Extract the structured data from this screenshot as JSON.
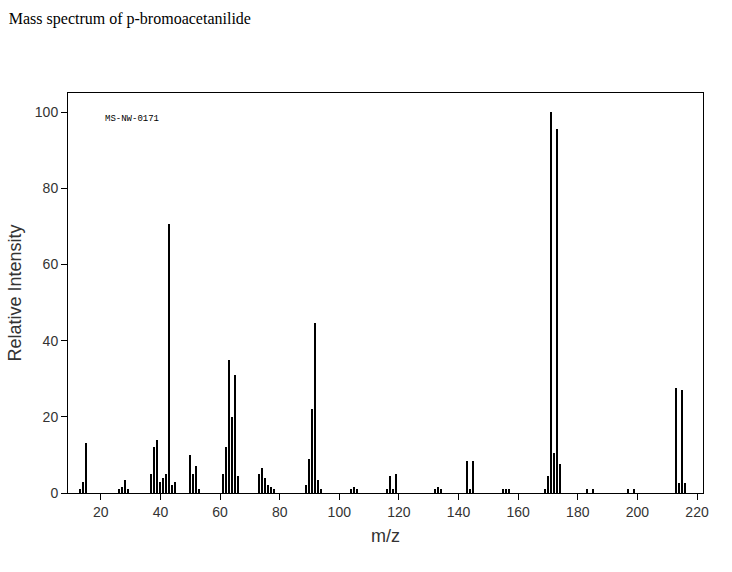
{
  "chart_data": {
    "type": "bar",
    "title": "Mass spectrum of p-bromoacetanilide",
    "annotations": [
      "MS-NW-0171"
    ],
    "x_label": "m/z",
    "y_label": "Relative Intensity",
    "x": [
      13,
      14,
      15,
      26,
      27,
      28,
      29,
      37,
      38,
      39,
      40,
      41,
      42,
      43,
      44,
      45,
      50,
      51,
      52,
      53,
      61,
      62,
      63,
      64,
      65,
      66,
      73,
      74,
      75,
      76,
      77,
      78,
      89,
      90,
      91,
      92,
      93,
      94,
      104,
      105,
      106,
      116,
      117,
      118,
      119,
      132,
      133,
      134,
      143,
      144,
      145,
      155,
      156,
      157,
      169,
      170,
      171,
      172,
      173,
      174,
      183,
      185,
      197,
      199,
      213,
      214,
      215,
      216
    ],
    "values": [
      1,
      3,
      13,
      1,
      1.5,
      3.5,
      1,
      5,
      12,
      14,
      3,
      4,
      5,
      70.5,
      2,
      3,
      10,
      5,
      7,
      1,
      5,
      12,
      35,
      20,
      31,
      4.5,
      5,
      6.5,
      4,
      2,
      1.5,
      1,
      2,
      9,
      22,
      44.5,
      3.5,
      1,
      1,
      1.5,
      1,
      1,
      4.5,
      1,
      5,
      1,
      1.5,
      1,
      8.5,
      1,
      8.5,
      1,
      1,
      1,
      1,
      4.5,
      100,
      10.5,
      95.5,
      7.5,
      1,
      1,
      1,
      1,
      27.5,
      2.5,
      27,
      2.5
    ],
    "color": "#000000",
    "xlim": [
      9,
      222
    ],
    "xticks": [
      20,
      40,
      60,
      80,
      100,
      120,
      140,
      160,
      180,
      200,
      220
    ],
    "ylim": [
      0,
      105
    ],
    "yticks": [
      0,
      20,
      40,
      60,
      80,
      100
    ],
    "grid": false
  }
}
